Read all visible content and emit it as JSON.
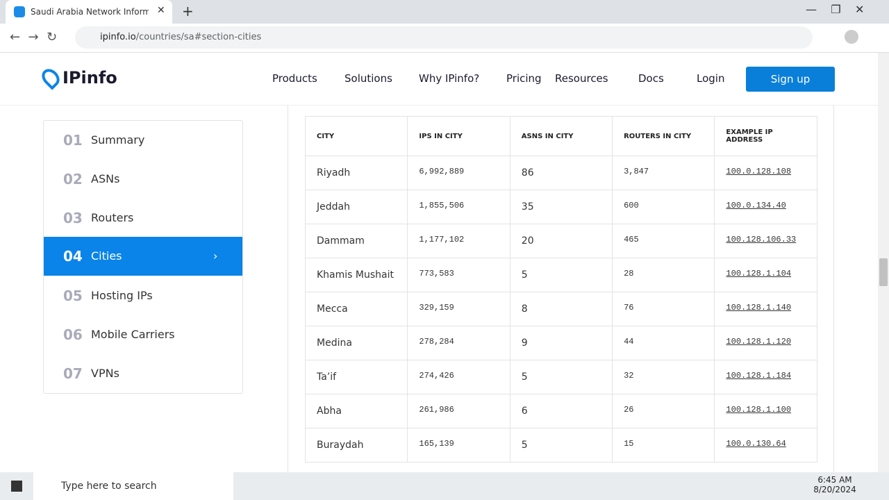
{
  "browser": {
    "tab_title": "Saudi Arabia Network Informatio",
    "url_host": "ipinfo.io",
    "url_path": "/countries/sa#section-cities"
  },
  "header": {
    "logo": "IPinfo",
    "nav": [
      "Products",
      "Solutions",
      "Why IPinfo?",
      "Pricing",
      "Resources",
      "Docs"
    ],
    "login": "Login",
    "signup": "Sign up"
  },
  "sidebar": {
    "items": [
      {
        "num": "01",
        "label": "Summary"
      },
      {
        "num": "02",
        "label": "ASNs"
      },
      {
        "num": "03",
        "label": "Routers"
      },
      {
        "num": "04",
        "label": "Cities"
      },
      {
        "num": "05",
        "label": "Hosting IPs"
      },
      {
        "num": "06",
        "label": "Mobile Carriers"
      },
      {
        "num": "07",
        "label": "VPNs"
      }
    ]
  },
  "table": {
    "headers": [
      "CITY",
      "IPS IN CITY",
      "ASNS IN CITY",
      "ROUTERS IN CITY",
      "EXAMPLE IP ADDRESS"
    ],
    "rows": [
      [
        "Riyadh",
        "6,992,889",
        "86",
        "3,847",
        "100.0.128.108"
      ],
      [
        "Jeddah",
        "1,855,506",
        "35",
        "600",
        "100.0.134.40"
      ],
      [
        "Dammam",
        "1,177,102",
        "20",
        "465",
        "100.128.106.33"
      ],
      [
        "Khamis Mushait",
        "773,583",
        "5",
        "28",
        "100.128.1.104"
      ],
      [
        "Mecca",
        "329,159",
        "8",
        "76",
        "100.128.1.140"
      ],
      [
        "Medina",
        "278,284",
        "9",
        "44",
        "100.128.1.120"
      ],
      [
        "Ta’if",
        "274,426",
        "5",
        "32",
        "100.128.1.184"
      ],
      [
        "Abha",
        "261,986",
        "6",
        "26",
        "100.128.1.100"
      ],
      [
        "Buraydah",
        "165,139",
        "5",
        "15",
        "100.0.130.64"
      ]
    ]
  },
  "taskbar": {
    "search": "Type here to search",
    "time": "6:45 AM",
    "date": "8/20/2024"
  }
}
